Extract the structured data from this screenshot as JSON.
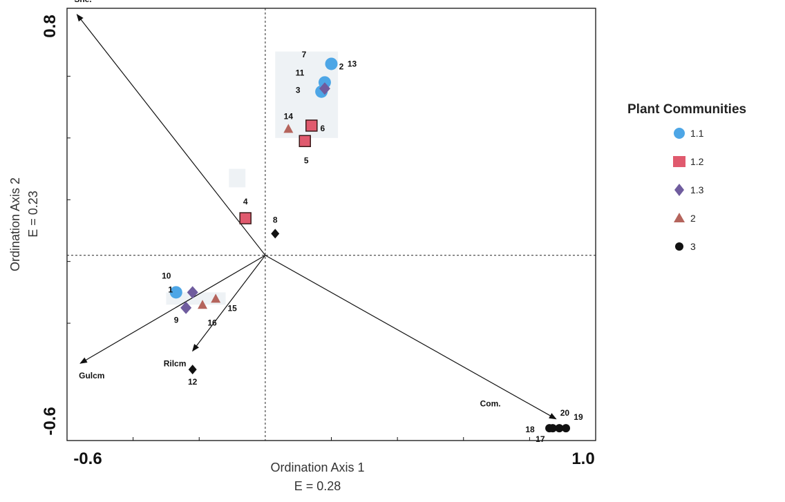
{
  "chart_data": {
    "type": "scatter",
    "xlabel": "Ordination Axis 1",
    "xlabel_sub": "E = 0.28",
    "ylabel": "Ordination Axis 2",
    "ylabel_sub": "E = 0.23",
    "xlim": [
      -0.6,
      1.0
    ],
    "ylim": [
      -0.6,
      0.8
    ],
    "x_ticks": [
      "-0.6",
      "1.0"
    ],
    "y_ticks": [
      "0.8",
      "-0.6"
    ],
    "grid": false,
    "origin_lines": true,
    "legend": {
      "title": "Plant Communities",
      "placement": "right",
      "entries": [
        {
          "label": "1.1",
          "marker": "circle",
          "color": "#4da6e6"
        },
        {
          "label": "1.2",
          "marker": "square",
          "color": "#e05a6e"
        },
        {
          "label": "1.3",
          "marker": "diamond",
          "color": "#6f5c9e"
        },
        {
          "label": "2",
          "marker": "triangle",
          "color": "#b5645c"
        },
        {
          "label": "3",
          "marker": "circle-small",
          "color": "#111111"
        }
      ]
    },
    "groups": [
      {
        "xmin": 0.03,
        "xmax": 0.22,
        "ymin": 0.38,
        "ymax": 0.66
      },
      {
        "xmin": -0.11,
        "xmax": -0.06,
        "ymin": 0.22,
        "ymax": 0.28
      },
      {
        "xmin": -0.3,
        "xmax": -0.12,
        "ymin": -0.16,
        "ymax": -0.12
      }
    ],
    "series": [
      {
        "name": "1.1",
        "marker": "circle",
        "color": "#4da6e6",
        "points": [
          {
            "id": "13",
            "x": 0.2,
            "y": 0.62
          },
          {
            "id": "11",
            "x": 0.18,
            "y": 0.56
          },
          {
            "id": "3",
            "x": 0.17,
            "y": 0.53
          },
          {
            "id": "10",
            "x": -0.27,
            "y": -0.12
          }
        ]
      },
      {
        "name": "1.2",
        "marker": "square",
        "color": "#e05a6e",
        "points": [
          {
            "id": "6",
            "x": 0.14,
            "y": 0.42
          },
          {
            "id": "5",
            "x": 0.12,
            "y": 0.37
          },
          {
            "id": "4",
            "x": -0.06,
            "y": 0.12
          }
        ]
      },
      {
        "name": "1.3",
        "marker": "diamond",
        "color": "#6f5c9e",
        "points": [
          {
            "id": "2",
            "x": 0.18,
            "y": 0.54
          },
          {
            "id": "1",
            "x": -0.22,
            "y": -0.12
          },
          {
            "id": "9",
            "x": -0.24,
            "y": -0.17
          }
        ]
      },
      {
        "name": "2",
        "marker": "triangle",
        "color": "#b5645c",
        "points": [
          {
            "id": "14",
            "x": 0.07,
            "y": 0.41
          },
          {
            "id": "16",
            "x": -0.19,
            "y": -0.16
          },
          {
            "id": "15",
            "x": -0.15,
            "y": -0.14
          }
        ]
      },
      {
        "name": "3",
        "marker": "diamond-black",
        "color": "#111111",
        "points": [
          {
            "id": "8",
            "x": 0.03,
            "y": 0.07
          },
          {
            "id": "12",
            "x": -0.22,
            "y": -0.37
          }
        ]
      },
      {
        "name": "3",
        "marker": "circle-small",
        "color": "#111111",
        "points": [
          {
            "id": "17",
            "x": 0.87,
            "y": -0.56
          },
          {
            "id": "18",
            "x": 0.86,
            "y": -0.56
          },
          {
            "id": "20",
            "x": 0.89,
            "y": -0.56
          },
          {
            "id": "19",
            "x": 0.91,
            "y": -0.56
          }
        ]
      }
    ],
    "unlabeled_points": [
      {
        "id": "7"
      }
    ],
    "point_label_offsets": {
      "7": [
        0,
        0
      ],
      "2": [
        0,
        0
      ]
    },
    "vectors": [
      {
        "name": "She.",
        "x": -0.57,
        "y": 0.78
      },
      {
        "name": "Gulcm",
        "x": -0.56,
        "y": -0.35
      },
      {
        "name": "Rilcm",
        "x": -0.22,
        "y": -0.31
      },
      {
        "name": "Com.",
        "x": 0.88,
        "y": -0.53
      }
    ]
  }
}
